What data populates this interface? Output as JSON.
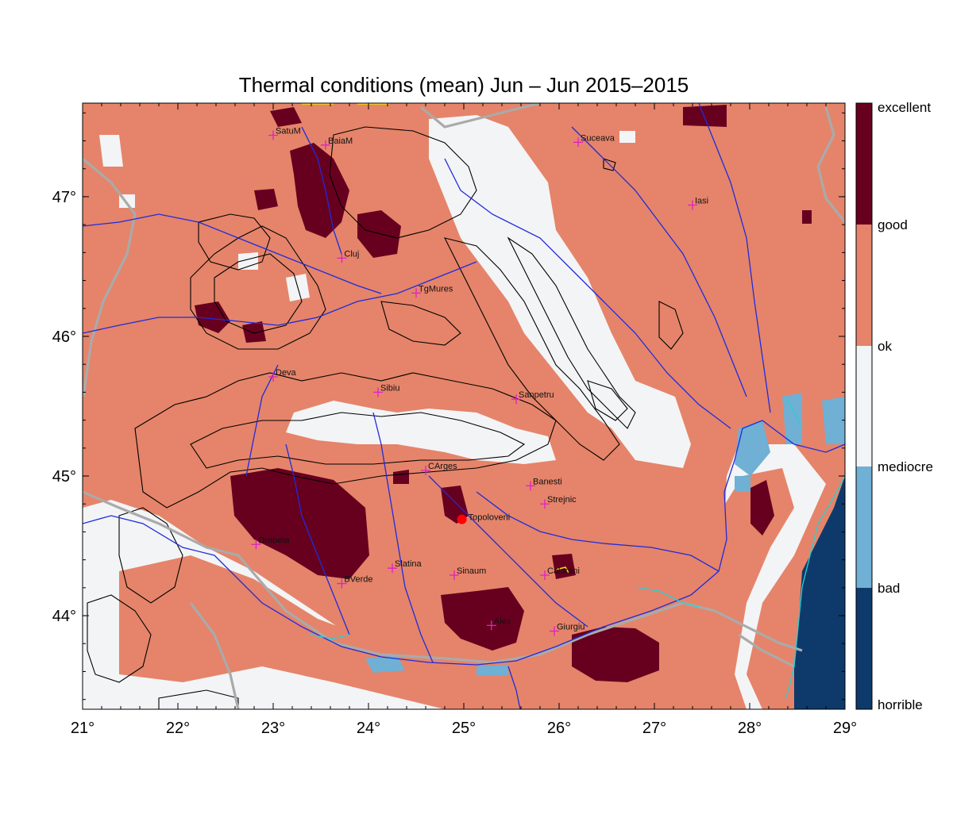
{
  "title": "Thermal conditions (mean) Jun – Jun  2015–2015",
  "axes": {
    "x_ticks": [
      "21°",
      "22°",
      "23°",
      "24°",
      "25°",
      "26°",
      "27°",
      "28°",
      "29°"
    ],
    "y_ticks": [
      "47°",
      "46°",
      "45°",
      "44°"
    ]
  },
  "colorbar": {
    "labels": [
      "excellent",
      "good",
      "ok",
      "mediocre",
      "bad",
      "horrible"
    ],
    "colors": {
      "excellent": "#67001f",
      "good": "#e5846a",
      "ok": "#f3f4f6",
      "mediocre": "#6fb0d4",
      "horrible": "#0d3a6b"
    }
  },
  "colors": {
    "background_class": "#e5846a",
    "river": "#1f2bdc",
    "border": "#aaaaaa",
    "contour": "#000000",
    "city_marker": "#e020c8",
    "highlight_marker": "#ff0000",
    "coast": "#26d0d8"
  },
  "cities": [
    {
      "name": "SatuM",
      "lon": 23.0,
      "lat": 47.44
    },
    {
      "name": "BaiaM",
      "lon": 23.55,
      "lat": 47.37
    },
    {
      "name": "Suceava",
      "lon": 26.2,
      "lat": 47.39
    },
    {
      "name": "Iasi",
      "lon": 27.4,
      "lat": 46.94
    },
    {
      "name": "Cluj",
      "lon": 23.72,
      "lat": 46.56
    },
    {
      "name": "TgMures",
      "lon": 24.5,
      "lat": 46.31
    },
    {
      "name": "Deva",
      "lon": 23.0,
      "lat": 45.71
    },
    {
      "name": "Sibiu",
      "lon": 24.1,
      "lat": 45.6
    },
    {
      "name": "Sanpetru",
      "lon": 25.55,
      "lat": 45.55
    },
    {
      "name": "CArges",
      "lon": 24.6,
      "lat": 45.04
    },
    {
      "name": "Banesti",
      "lon": 25.7,
      "lat": 44.93
    },
    {
      "name": "Strejnic",
      "lon": 25.85,
      "lat": 44.8
    },
    {
      "name": "Drobeta",
      "lon": 22.82,
      "lat": 44.51
    },
    {
      "name": "Slatina",
      "lon": 24.25,
      "lat": 44.34
    },
    {
      "name": "Sinaum",
      "lon": 24.9,
      "lat": 44.29
    },
    {
      "name": "Calarani",
      "lon": 25.85,
      "lat": 44.29
    },
    {
      "name": "BVerde",
      "lon": 23.72,
      "lat": 44.23
    },
    {
      "name": "Alex",
      "lon": 25.29,
      "lat": 43.93
    },
    {
      "name": "Giurgiu",
      "lon": 25.95,
      "lat": 43.89
    }
  ],
  "highlight": {
    "name": "Topoloveni",
    "lon": 24.98,
    "lat": 44.69
  }
}
